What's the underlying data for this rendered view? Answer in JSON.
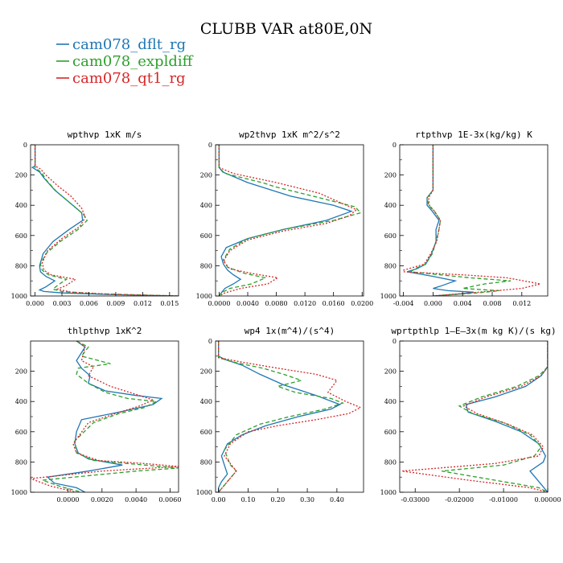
{
  "figure": {
    "title": "CLUBB VAR at80E,0N",
    "legend": [
      {
        "label": "cam078_dflt_rg",
        "color": "#1f77b4",
        "dash": "solid"
      },
      {
        "label": "cam078_expldiff",
        "color": "#2ca02c",
        "dash": "dashed"
      },
      {
        "label": "cam078_qt1_rg",
        "color": "#d62728",
        "dash": "dotted"
      }
    ]
  },
  "chart_data": [
    {
      "type": "line",
      "title": "wpthvp  1xK m/s",
      "xlim": [
        -0.0005,
        0.016
      ],
      "ylim": [
        1000,
        0
      ],
      "xticks": [
        0.0,
        0.003,
        0.006,
        0.009,
        0.012,
        0.015
      ],
      "xticklabels": [
        "0.000",
        "0.003",
        "0.006",
        "0.009",
        "0.012",
        "0.015"
      ],
      "yticks": [
        0,
        200,
        400,
        600,
        800,
        1000
      ],
      "series": [
        {
          "name": "cam078_dflt_rg",
          "x": [
            0.0,
            0.0,
            -0.0003,
            0.0005,
            0.001,
            0.0022,
            0.0038,
            0.0052,
            0.0053,
            0.0038,
            0.002,
            0.0009,
            0.0005,
            0.0006,
            0.0012,
            0.0022,
            0.0012,
            0.0005,
            0.001,
            0.003,
            0.008,
            0.016
          ],
          "y": [
            0,
            140,
            150,
            180,
            220,
            300,
            380,
            450,
            500,
            560,
            640,
            720,
            800,
            840,
            870,
            900,
            940,
            960,
            970,
            980,
            990,
            1000
          ]
        },
        {
          "name": "cam078_expldiff",
          "x": [
            0.0,
            0.0,
            0.0,
            0.0008,
            0.0012,
            0.0024,
            0.004,
            0.0054,
            0.0058,
            0.0048,
            0.0028,
            0.0012,
            0.0006,
            0.0008,
            0.0015,
            0.0035,
            0.0025,
            0.002,
            0.003,
            0.007,
            0.016
          ],
          "y": [
            0,
            140,
            150,
            190,
            230,
            310,
            390,
            460,
            500,
            560,
            640,
            720,
            790,
            830,
            860,
            890,
            930,
            955,
            970,
            985,
            1000
          ]
        },
        {
          "name": "cam078_qt1_rg",
          "x": [
            0.0,
            0.0,
            0.0006,
            0.0012,
            0.0025,
            0.004,
            0.0052,
            0.0056,
            0.005,
            0.003,
            0.0014,
            0.0008,
            0.001,
            0.0018,
            0.0045,
            0.0035,
            0.0025,
            0.004,
            0.009,
            0.016
          ],
          "y": [
            0,
            140,
            160,
            200,
            270,
            340,
            420,
            480,
            540,
            620,
            700,
            780,
            830,
            860,
            890,
            930,
            955,
            975,
            990,
            1000
          ]
        }
      ]
    },
    {
      "type": "line",
      "title": "wp2thvp  1xK m^2/s^2",
      "xlim": [
        -0.0005,
        0.0202
      ],
      "ylim": [
        1000,
        0
      ],
      "xticks": [
        0.0,
        0.004,
        0.008,
        0.012,
        0.016,
        0.02
      ],
      "xticklabels": [
        "0.0000",
        "0.0040",
        "0.0080",
        "0.0120",
        "0.0160",
        "0.0200"
      ],
      "yticks": [
        0,
        200,
        400,
        600,
        800,
        1000
      ],
      "series": [
        {
          "name": "cam078_dflt_rg",
          "x": [
            0.0,
            0.0,
            0.0005,
            0.004,
            0.01,
            0.016,
            0.0185,
            0.015,
            0.009,
            0.004,
            0.001,
            0.0003,
            0.0006,
            0.0012,
            0.002,
            0.003,
            0.002,
            0.0008,
            0.0003,
            0.0
          ],
          "y": [
            0,
            150,
            180,
            250,
            340,
            400,
            440,
            500,
            560,
            620,
            680,
            740,
            790,
            830,
            860,
            890,
            920,
            950,
            980,
            1000
          ]
        },
        {
          "name": "cam078_expldiff",
          "x": [
            0.0,
            0.0,
            0.0008,
            0.006,
            0.008,
            0.014,
            0.019,
            0.0198,
            0.016,
            0.009,
            0.004,
            0.0015,
            0.0006,
            0.0012,
            0.0035,
            0.0065,
            0.0045,
            0.0015,
            0.0003,
            0.0
          ],
          "y": [
            0,
            150,
            190,
            250,
            280,
            350,
            410,
            450,
            500,
            560,
            620,
            690,
            760,
            810,
            850,
            880,
            920,
            950,
            980,
            1000
          ]
        },
        {
          "name": "cam078_qt1_rg",
          "x": [
            0.0,
            0.0,
            0.002,
            0.008,
            0.014,
            0.0192,
            0.0182,
            0.015,
            0.009,
            0.004,
            0.0015,
            0.0006,
            0.0015,
            0.0045,
            0.0082,
            0.0068,
            0.003,
            0.0008,
            0.0
          ],
          "y": [
            0,
            150,
            190,
            250,
            320,
            430,
            470,
            520,
            570,
            630,
            700,
            770,
            820,
            850,
            880,
            920,
            950,
            980,
            1000
          ]
        }
      ]
    },
    {
      "type": "line",
      "title": "rtpthvp  1E-3x(kg/kg) K",
      "xlim": [
        -0.0045,
        0.0155
      ],
      "ylim": [
        1000,
        0
      ],
      "xticks": [
        -0.004,
        0.0,
        0.004,
        0.008,
        0.012
      ],
      "xticklabels": [
        "-0.004",
        "0.000",
        "0.004",
        "0.008",
        "0.012"
      ],
      "yticks": [
        0,
        200,
        400,
        600,
        800,
        1000
      ],
      "series": [
        {
          "name": "cam078_dflt_rg",
          "x": [
            0.0,
            0.0,
            0.0,
            -0.0008,
            -0.0008,
            -0.0001,
            0.0008,
            0.0004,
            0.0004,
            -0.0002,
            -0.001,
            -0.0022,
            -0.0035,
            0.0,
            0.003,
            0.001,
            0.0,
            0.002,
            0.0055,
            0.004,
            0.0
          ],
          "y": [
            0,
            150,
            300,
            350,
            400,
            440,
            500,
            560,
            640,
            720,
            790,
            820,
            840,
            870,
            900,
            935,
            950,
            965,
            975,
            985,
            1000
          ]
        },
        {
          "name": "cam078_expldiff",
          "x": [
            0.0,
            0.0,
            0.0,
            -0.0008,
            -0.0006,
            0.0002,
            0.001,
            0.0008,
            0.0004,
            -0.0001,
            -0.001,
            -0.0025,
            -0.003,
            0.001,
            0.005,
            0.0105,
            0.007,
            0.004,
            0.009,
            0.006,
            0.0
          ],
          "y": [
            0,
            150,
            300,
            350,
            400,
            440,
            500,
            560,
            640,
            720,
            790,
            820,
            840,
            860,
            880,
            900,
            920,
            950,
            965,
            980,
            1000
          ]
        },
        {
          "name": "cam078_qt1_rg",
          "x": [
            0.0,
            0.0,
            0.0,
            -0.0006,
            -0.0005,
            0.0002,
            0.001,
            0.0008,
            0.0005,
            -0.0003,
            -0.0012,
            -0.004,
            -0.004,
            0.004,
            0.01,
            0.0145,
            0.012,
            0.005,
            0.0
          ],
          "y": [
            0,
            150,
            300,
            350,
            400,
            440,
            500,
            560,
            640,
            720,
            790,
            830,
            840,
            860,
            880,
            920,
            950,
            980,
            1000
          ]
        }
      ]
    },
    {
      "type": "line",
      "title": "thlpthvp  1xK^2",
      "xlim": [
        -0.0022,
        0.0065
      ],
      "ylim": [
        1000,
        0
      ],
      "xticks": [
        0.0,
        0.002,
        0.004,
        0.006
      ],
      "xticklabels": [
        "0.0000",
        "0.0020",
        "0.0040",
        "0.0060"
      ],
      "yticks": [
        200,
        400,
        600,
        800,
        1000
      ],
      "series": [
        {
          "name": "cam078_dflt_rg",
          "x": [
            0.0005,
            0.001,
            0.0005,
            0.0008,
            0.0013,
            0.0012,
            0.0022,
            0.004,
            0.0055,
            0.005,
            0.003,
            0.0008,
            0.0005,
            0.0004,
            0.0006,
            0.0012,
            0.0032,
            0.0012,
            -0.0012,
            -0.0008,
            0.0005,
            0.001
          ],
          "y": [
            0,
            40,
            130,
            180,
            230,
            280,
            330,
            360,
            380,
            420,
            470,
            520,
            600,
            680,
            740,
            780,
            820,
            860,
            900,
            940,
            970,
            1000
          ]
        },
        {
          "name": "cam078_expldiff",
          "x": [
            0.0005,
            0.0012,
            0.0008,
            0.0025,
            0.0006,
            0.0005,
            0.0012,
            0.0022,
            0.0035,
            0.0052,
            0.0045,
            0.003,
            0.0015,
            0.0004,
            0.0005,
            0.0015,
            0.0045,
            0.0065,
            0.004,
            -0.0015,
            -0.0005,
            0.0008
          ],
          "y": [
            0,
            40,
            100,
            150,
            180,
            220,
            280,
            340,
            380,
            400,
            440,
            480,
            540,
            660,
            740,
            790,
            820,
            840,
            860,
            920,
            960,
            1000
          ]
        },
        {
          "name": "cam078_qt1_rg",
          "x": [
            0.0005,
            0.001,
            0.0008,
            0.0015,
            0.0012,
            0.0025,
            0.0042,
            0.005,
            0.0042,
            0.0028,
            0.0012,
            0.0003,
            0.0005,
            0.0018,
            0.0045,
            0.0065,
            0.002,
            -0.0022,
            -0.001,
            0.0005
          ],
          "y": [
            0,
            40,
            130,
            170,
            230,
            300,
            360,
            390,
            430,
            480,
            540,
            680,
            740,
            790,
            810,
            830,
            860,
            910,
            960,
            1000
          ]
        }
      ]
    },
    {
      "type": "line",
      "title": "wp4  1x(m^4)/(s^4)",
      "xlim": [
        -0.01,
        0.49
      ],
      "ylim": [
        1000,
        0
      ],
      "xticks": [
        0.0,
        0.1,
        0.2,
        0.3,
        0.4
      ],
      "xticklabels": [
        "0.00",
        "0.10",
        "0.20",
        "0.30",
        "0.40"
      ],
      "yticks": [
        0,
        200,
        400,
        600,
        800,
        1000
      ],
      "series": [
        {
          "name": "cam078_dflt_rg",
          "x": [
            0.0,
            0.0,
            0.02,
            0.08,
            0.14,
            0.22,
            0.33,
            0.41,
            0.38,
            0.27,
            0.16,
            0.08,
            0.03,
            0.01,
            0.02,
            0.03,
            0.01,
            0.0,
            0.0
          ],
          "y": [
            0,
            100,
            120,
            160,
            220,
            290,
            360,
            420,
            450,
            500,
            560,
            620,
            680,
            760,
            820,
            880,
            930,
            970,
            1000
          ]
        },
        {
          "name": "cam078_expldiff",
          "x": [
            0.0,
            0.0,
            0.05,
            0.15,
            0.22,
            0.28,
            0.2,
            0.26,
            0.38,
            0.42,
            0.36,
            0.24,
            0.14,
            0.06,
            0.02,
            0.04,
            0.06,
            0.03,
            0.0
          ],
          "y": [
            0,
            110,
            140,
            180,
            220,
            260,
            300,
            340,
            380,
            410,
            450,
            500,
            550,
            620,
            720,
            820,
            860,
            930,
            1000
          ]
        },
        {
          "name": "cam078_qt1_rg",
          "x": [
            0.0,
            0.0,
            0.08,
            0.2,
            0.33,
            0.4,
            0.37,
            0.43,
            0.48,
            0.44,
            0.33,
            0.2,
            0.1,
            0.04,
            0.02,
            0.06,
            0.03,
            0.0
          ],
          "y": [
            0,
            110,
            140,
            180,
            220,
            260,
            340,
            400,
            440,
            480,
            520,
            560,
            600,
            680,
            760,
            860,
            930,
            1000
          ]
        }
      ]
    },
    {
      "type": "line",
      "title": "wprtpthlp  1–E–3x(m kg K)/(s kg)",
      "xlim": [
        -0.0335,
        0.0
      ],
      "ylim": [
        1000,
        0
      ],
      "xticks": [
        -0.03,
        -0.02,
        -0.01,
        0.0
      ],
      "xticklabels": [
        "-0.03000",
        "-0.02000",
        "-0.01000",
        "0.00000"
      ],
      "yticks": [
        0,
        200,
        400,
        600,
        800,
        1000
      ],
      "series": [
        {
          "name": "cam078_dflt_rg",
          "x": [
            0.0,
            0.0,
            -0.0015,
            -0.005,
            -0.012,
            -0.0185,
            -0.018,
            -0.012,
            -0.006,
            -0.002,
            -0.0005,
            -0.001,
            -0.004,
            -0.002,
            0.0
          ],
          "y": [
            0,
            170,
            230,
            300,
            370,
            420,
            470,
            530,
            600,
            680,
            760,
            800,
            860,
            930,
            1000
          ]
        },
        {
          "name": "cam078_expldiff",
          "x": [
            0.0,
            0.0,
            -0.002,
            -0.007,
            -0.015,
            -0.02,
            -0.017,
            -0.01,
            -0.004,
            -0.0015,
            -0.003,
            -0.01,
            -0.024,
            -0.012,
            -0.002,
            0.0
          ],
          "y": [
            0,
            170,
            230,
            300,
            370,
            430,
            480,
            540,
            620,
            700,
            760,
            820,
            860,
            920,
            970,
            1000
          ]
        },
        {
          "name": "cam078_qt1_rg",
          "x": [
            0.0,
            0.0,
            -0.0015,
            -0.006,
            -0.014,
            -0.019,
            -0.016,
            -0.009,
            -0.0035,
            -0.001,
            -0.002,
            -0.012,
            -0.033,
            -0.018,
            -0.004,
            0.0
          ],
          "y": [
            0,
            170,
            230,
            300,
            370,
            430,
            480,
            550,
            620,
            700,
            760,
            810,
            860,
            920,
            970,
            1000
          ]
        }
      ]
    }
  ]
}
